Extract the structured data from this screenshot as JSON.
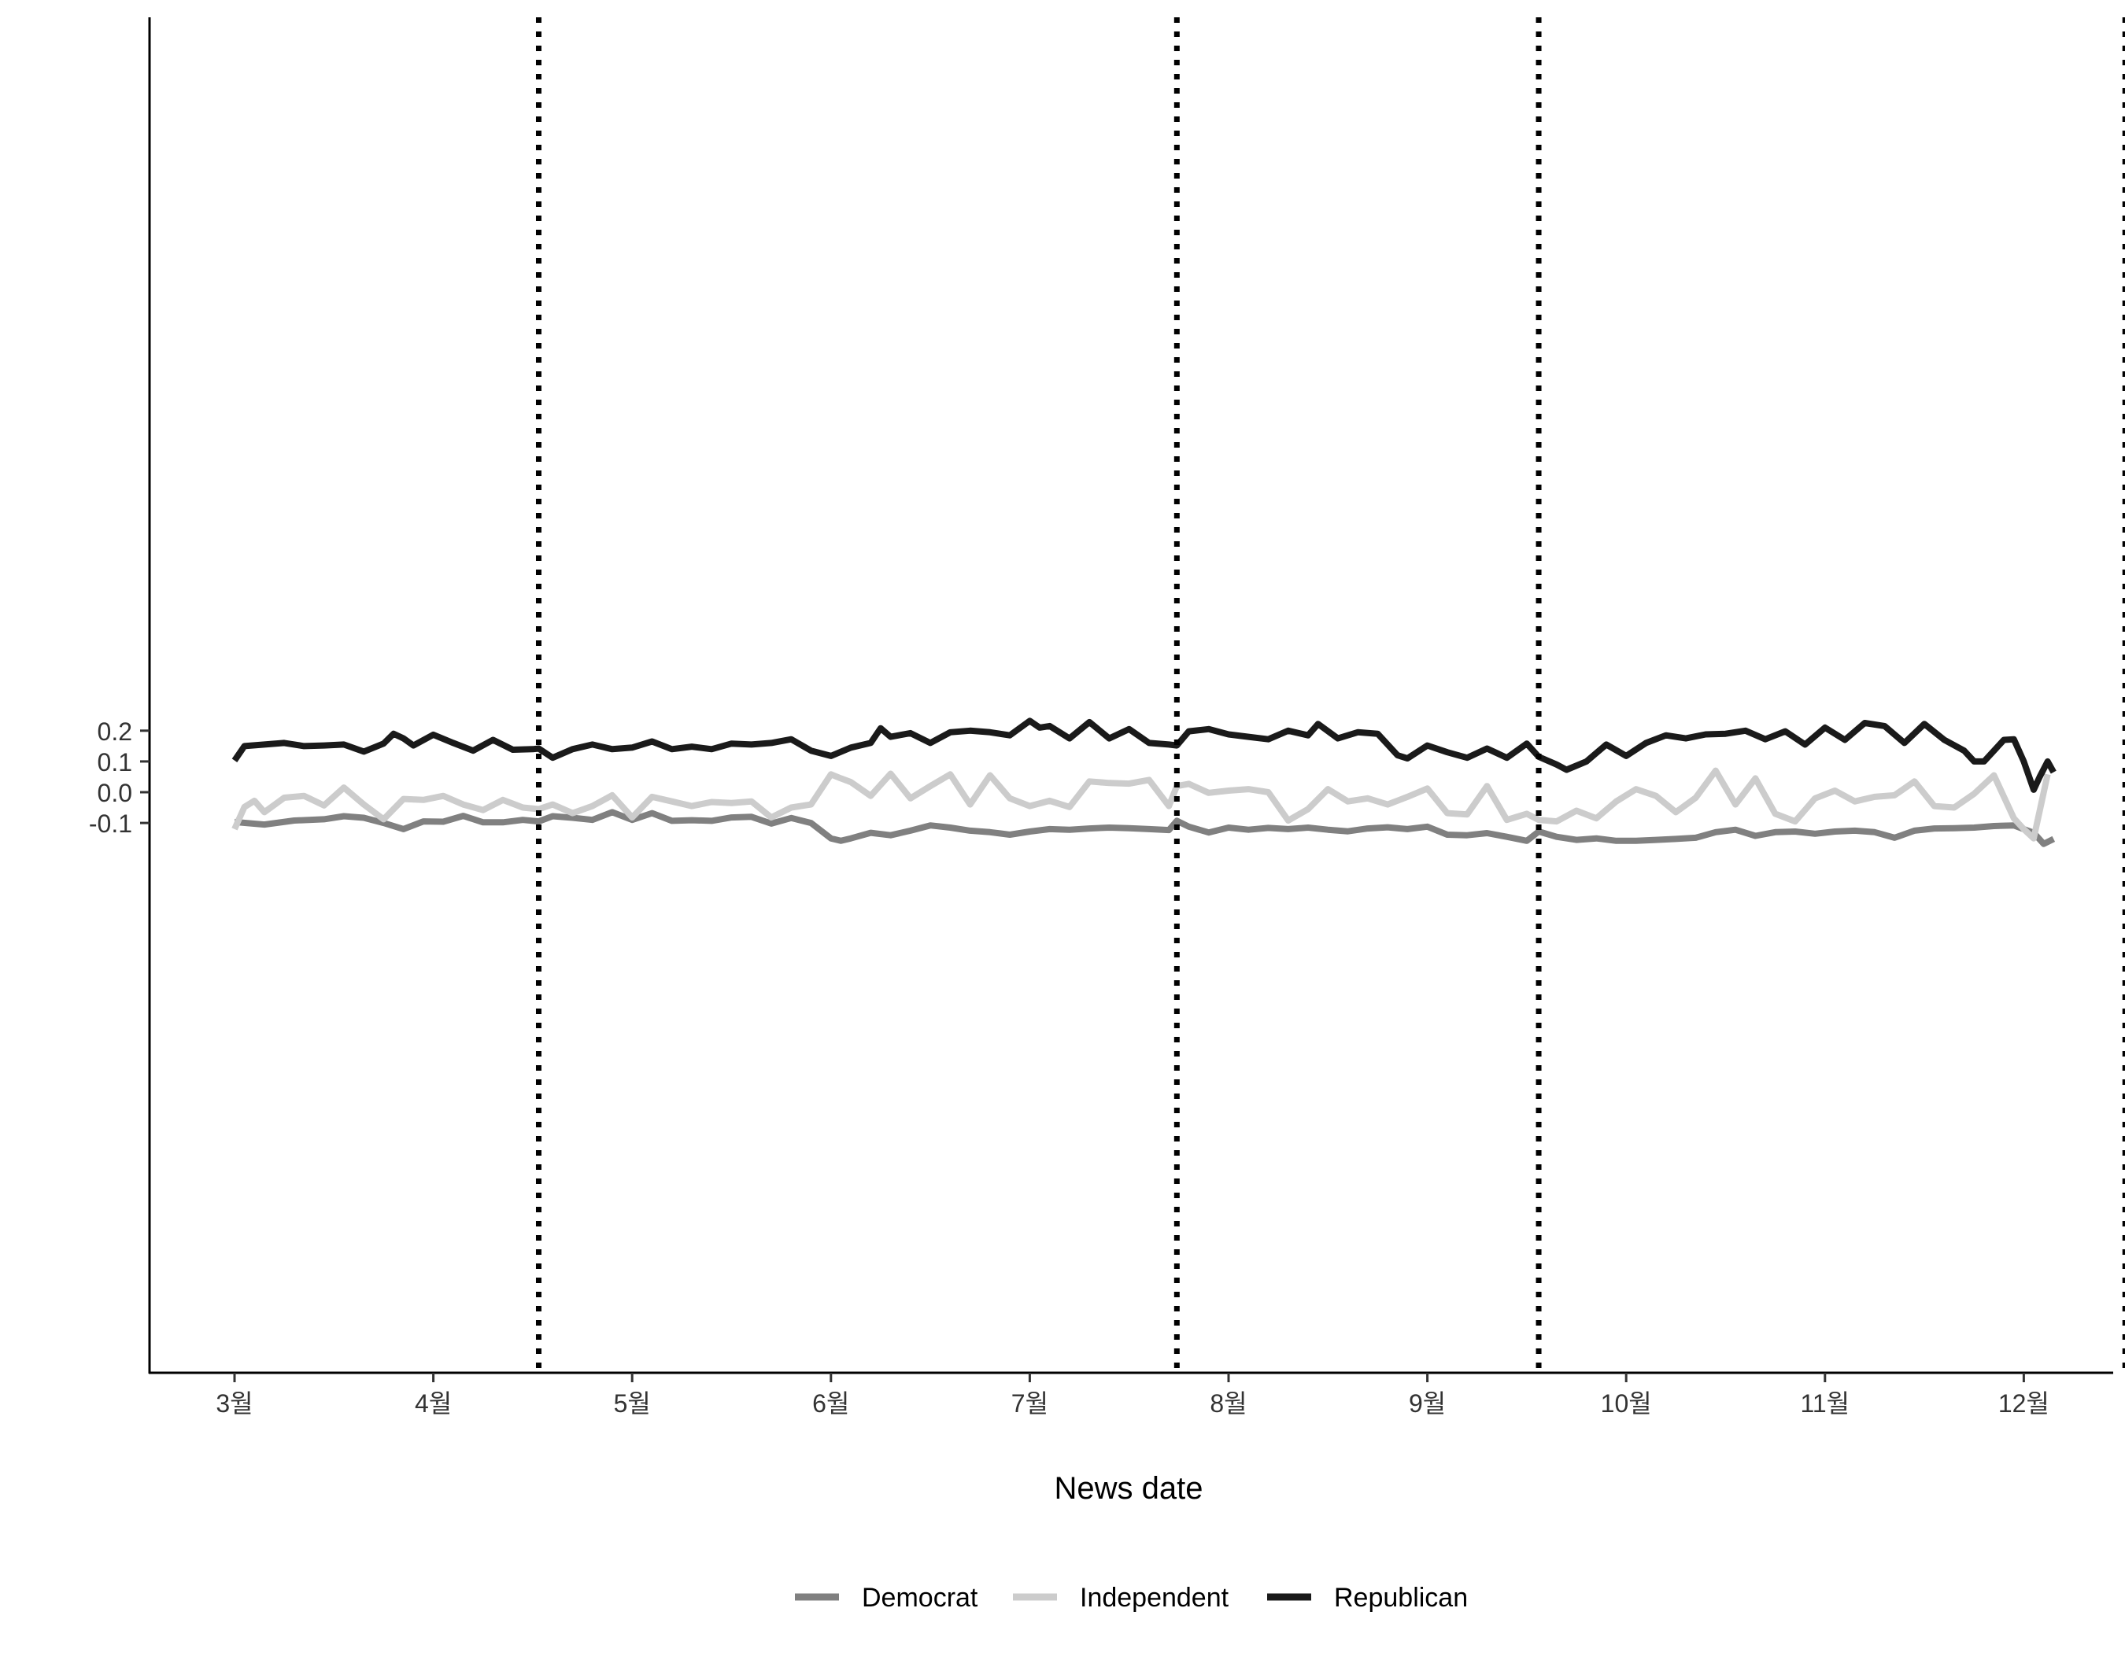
{
  "chart_data": {
    "type": "line",
    "title": "",
    "xlabel": "News date",
    "ylabel": "",
    "ylim": [
      -0.19,
      0.252
    ],
    "y_ticks": [
      {
        "value": -0.1,
        "label": "-0.1"
      },
      {
        "value": 0.0,
        "label": "0.0"
      },
      {
        "value": 0.1,
        "label": "0.1"
      },
      {
        "value": 0.2,
        "label": "0.2"
      }
    ],
    "x_ticks": [
      "3월",
      "4월",
      "5월",
      "6월",
      "7월",
      "8월",
      "9월",
      "10월",
      "11월",
      "12월"
    ],
    "vlines_month_position": [
      4.53,
      7.74,
      9.56,
      12.51
    ],
    "vline_style": "dotted",
    "grid": false,
    "legend_position": "bottom",
    "series": [
      {
        "name": "Democrat",
        "color": "#808080",
        "points": [
          [
            3.0,
            -0.097
          ],
          [
            3.15,
            -0.105
          ],
          [
            3.3,
            -0.092
          ],
          [
            3.45,
            -0.088
          ],
          [
            3.55,
            -0.078
          ],
          [
            3.65,
            -0.083
          ],
          [
            3.75,
            -0.1
          ],
          [
            3.85,
            -0.12
          ],
          [
            3.95,
            -0.095
          ],
          [
            4.05,
            -0.096
          ],
          [
            4.15,
            -0.077
          ],
          [
            4.25,
            -0.098
          ],
          [
            4.35,
            -0.098
          ],
          [
            4.45,
            -0.09
          ],
          [
            4.53,
            -0.095
          ],
          [
            4.6,
            -0.078
          ],
          [
            4.7,
            -0.083
          ],
          [
            4.8,
            -0.09
          ],
          [
            4.9,
            -0.065
          ],
          [
            5.0,
            -0.09
          ],
          [
            5.1,
            -0.068
          ],
          [
            5.2,
            -0.093
          ],
          [
            5.3,
            -0.091
          ],
          [
            5.4,
            -0.093
          ],
          [
            5.5,
            -0.082
          ],
          [
            5.6,
            -0.08
          ],
          [
            5.7,
            -0.102
          ],
          [
            5.8,
            -0.084
          ],
          [
            5.9,
            -0.1
          ],
          [
            6.0,
            -0.15
          ],
          [
            6.05,
            -0.158
          ],
          [
            6.1,
            -0.15
          ],
          [
            6.2,
            -0.132
          ],
          [
            6.3,
            -0.14
          ],
          [
            6.4,
            -0.125
          ],
          [
            6.5,
            -0.108
          ],
          [
            6.6,
            -0.115
          ],
          [
            6.7,
            -0.125
          ],
          [
            6.8,
            -0.13
          ],
          [
            6.9,
            -0.138
          ],
          [
            7.0,
            -0.128
          ],
          [
            7.1,
            -0.12
          ],
          [
            7.2,
            -0.122
          ],
          [
            7.3,
            -0.118
          ],
          [
            7.4,
            -0.115
          ],
          [
            7.5,
            -0.117
          ],
          [
            7.6,
            -0.12
          ],
          [
            7.7,
            -0.123
          ],
          [
            7.74,
            -0.093
          ],
          [
            7.8,
            -0.112
          ],
          [
            7.9,
            -0.131
          ],
          [
            8.0,
            -0.115
          ],
          [
            8.1,
            -0.122
          ],
          [
            8.2,
            -0.116
          ],
          [
            8.3,
            -0.12
          ],
          [
            8.4,
            -0.115
          ],
          [
            8.5,
            -0.122
          ],
          [
            8.6,
            -0.127
          ],
          [
            8.7,
            -0.118
          ],
          [
            8.8,
            -0.114
          ],
          [
            8.9,
            -0.12
          ],
          [
            9.0,
            -0.112
          ],
          [
            9.1,
            -0.138
          ],
          [
            9.2,
            -0.14
          ],
          [
            9.3,
            -0.133
          ],
          [
            9.4,
            -0.145
          ],
          [
            9.5,
            -0.158
          ],
          [
            9.56,
            -0.128
          ],
          [
            9.65,
            -0.145
          ],
          [
            9.75,
            -0.155
          ],
          [
            9.85,
            -0.15
          ],
          [
            9.95,
            -0.158
          ],
          [
            10.05,
            -0.158
          ],
          [
            10.15,
            -0.155
          ],
          [
            10.25,
            -0.152
          ],
          [
            10.35,
            -0.148
          ],
          [
            10.45,
            -0.13
          ],
          [
            10.55,
            -0.122
          ],
          [
            10.65,
            -0.142
          ],
          [
            10.75,
            -0.13
          ],
          [
            10.85,
            -0.128
          ],
          [
            10.95,
            -0.135
          ],
          [
            11.05,
            -0.128
          ],
          [
            11.15,
            -0.125
          ],
          [
            11.25,
            -0.13
          ],
          [
            11.35,
            -0.148
          ],
          [
            11.45,
            -0.125
          ],
          [
            11.55,
            -0.118
          ],
          [
            11.65,
            -0.117
          ],
          [
            11.75,
            -0.115
          ],
          [
            11.85,
            -0.11
          ],
          [
            11.95,
            -0.108
          ],
          [
            12.05,
            -0.132
          ],
          [
            12.1,
            -0.168
          ],
          [
            12.15,
            -0.152
          ]
        ]
      },
      {
        "name": "Independent",
        "color": "#cccccc",
        "points": [
          [
            3.0,
            -0.12
          ],
          [
            3.05,
            -0.048
          ],
          [
            3.1,
            -0.028
          ],
          [
            3.15,
            -0.065
          ],
          [
            3.25,
            -0.018
          ],
          [
            3.35,
            -0.012
          ],
          [
            3.45,
            -0.043
          ],
          [
            3.55,
            0.015
          ],
          [
            3.65,
            -0.04
          ],
          [
            3.75,
            -0.088
          ],
          [
            3.85,
            -0.022
          ],
          [
            3.95,
            -0.025
          ],
          [
            4.05,
            -0.012
          ],
          [
            4.15,
            -0.04
          ],
          [
            4.25,
            -0.058
          ],
          [
            4.35,
            -0.025
          ],
          [
            4.45,
            -0.05
          ],
          [
            4.53,
            -0.055
          ],
          [
            4.6,
            -0.04
          ],
          [
            4.7,
            -0.068
          ],
          [
            4.8,
            -0.045
          ],
          [
            4.9,
            -0.01
          ],
          [
            5.0,
            -0.082
          ],
          [
            5.1,
            -0.015
          ],
          [
            5.2,
            -0.03
          ],
          [
            5.3,
            -0.045
          ],
          [
            5.4,
            -0.032
          ],
          [
            5.5,
            -0.035
          ],
          [
            5.6,
            -0.03
          ],
          [
            5.7,
            -0.082
          ],
          [
            5.8,
            -0.05
          ],
          [
            5.9,
            -0.04
          ],
          [
            6.0,
            0.058
          ],
          [
            6.05,
            0.045
          ],
          [
            6.1,
            0.033
          ],
          [
            6.2,
            -0.012
          ],
          [
            6.3,
            0.06
          ],
          [
            6.4,
            -0.02
          ],
          [
            6.5,
            0.02
          ],
          [
            6.6,
            0.058
          ],
          [
            6.7,
            -0.04
          ],
          [
            6.8,
            0.055
          ],
          [
            6.9,
            -0.02
          ],
          [
            7.0,
            -0.045
          ],
          [
            7.1,
            -0.028
          ],
          [
            7.2,
            -0.048
          ],
          [
            7.3,
            0.035
          ],
          [
            7.4,
            0.03
          ],
          [
            7.5,
            0.028
          ],
          [
            7.6,
            0.04
          ],
          [
            7.7,
            -0.045
          ],
          [
            7.74,
            0.02
          ],
          [
            7.8,
            0.027
          ],
          [
            7.9,
            -0.002
          ],
          [
            8.0,
            0.005
          ],
          [
            8.1,
            0.01
          ],
          [
            8.2,
            0.0
          ],
          [
            8.3,
            -0.092
          ],
          [
            8.4,
            -0.055
          ],
          [
            8.5,
            0.01
          ],
          [
            8.6,
            -0.03
          ],
          [
            8.7,
            -0.02
          ],
          [
            8.8,
            -0.04
          ],
          [
            8.9,
            -0.015
          ],
          [
            9.0,
            0.012
          ],
          [
            9.1,
            -0.068
          ],
          [
            9.2,
            -0.072
          ],
          [
            9.3,
            0.02
          ],
          [
            9.4,
            -0.09
          ],
          [
            9.5,
            -0.07
          ],
          [
            9.56,
            -0.09
          ],
          [
            9.65,
            -0.095
          ],
          [
            9.75,
            -0.06
          ],
          [
            9.85,
            -0.085
          ],
          [
            9.95,
            -0.03
          ],
          [
            10.05,
            0.01
          ],
          [
            10.15,
            -0.012
          ],
          [
            10.25,
            -0.065
          ],
          [
            10.35,
            -0.018
          ],
          [
            10.45,
            0.07
          ],
          [
            10.55,
            -0.04
          ],
          [
            10.65,
            0.045
          ],
          [
            10.75,
            -0.07
          ],
          [
            10.85,
            -0.095
          ],
          [
            10.95,
            -0.02
          ],
          [
            11.05,
            0.005
          ],
          [
            11.15,
            -0.03
          ],
          [
            11.25,
            -0.015
          ],
          [
            11.35,
            -0.01
          ],
          [
            11.45,
            0.035
          ],
          [
            11.55,
            -0.045
          ],
          [
            11.65,
            -0.05
          ],
          [
            11.75,
            -0.005
          ],
          [
            11.85,
            0.055
          ],
          [
            11.95,
            -0.085
          ],
          [
            12.0,
            -0.12
          ],
          [
            12.05,
            -0.15
          ],
          [
            12.12,
            0.058
          ]
        ]
      },
      {
        "name": "Republican",
        "color": "#1a1a1a",
        "points": [
          [
            3.0,
            0.103
          ],
          [
            3.05,
            0.15
          ],
          [
            3.15,
            0.155
          ],
          [
            3.25,
            0.16
          ],
          [
            3.35,
            0.15
          ],
          [
            3.45,
            0.152
          ],
          [
            3.55,
            0.155
          ],
          [
            3.65,
            0.132
          ],
          [
            3.75,
            0.158
          ],
          [
            3.8,
            0.19
          ],
          [
            3.85,
            0.175
          ],
          [
            3.9,
            0.152
          ],
          [
            4.0,
            0.187
          ],
          [
            4.1,
            0.16
          ],
          [
            4.2,
            0.135
          ],
          [
            4.3,
            0.17
          ],
          [
            4.4,
            0.138
          ],
          [
            4.5,
            0.14
          ],
          [
            4.53,
            0.142
          ],
          [
            4.6,
            0.112
          ],
          [
            4.7,
            0.14
          ],
          [
            4.8,
            0.155
          ],
          [
            4.9,
            0.14
          ],
          [
            5.0,
            0.145
          ],
          [
            5.1,
            0.165
          ],
          [
            5.2,
            0.14
          ],
          [
            5.3,
            0.148
          ],
          [
            5.4,
            0.14
          ],
          [
            5.5,
            0.158
          ],
          [
            5.6,
            0.155
          ],
          [
            5.7,
            0.16
          ],
          [
            5.8,
            0.172
          ],
          [
            5.9,
            0.135
          ],
          [
            6.0,
            0.118
          ],
          [
            6.1,
            0.145
          ],
          [
            6.2,
            0.16
          ],
          [
            6.25,
            0.208
          ],
          [
            6.3,
            0.18
          ],
          [
            6.4,
            0.192
          ],
          [
            6.5,
            0.16
          ],
          [
            6.6,
            0.195
          ],
          [
            6.7,
            0.2
          ],
          [
            6.8,
            0.195
          ],
          [
            6.9,
            0.185
          ],
          [
            7.0,
            0.232
          ],
          [
            7.05,
            0.21
          ],
          [
            7.1,
            0.215
          ],
          [
            7.2,
            0.175
          ],
          [
            7.3,
            0.228
          ],
          [
            7.4,
            0.175
          ],
          [
            7.5,
            0.205
          ],
          [
            7.6,
            0.16
          ],
          [
            7.7,
            0.155
          ],
          [
            7.74,
            0.152
          ],
          [
            7.8,
            0.198
          ],
          [
            7.9,
            0.205
          ],
          [
            8.0,
            0.188
          ],
          [
            8.1,
            0.18
          ],
          [
            8.2,
            0.172
          ],
          [
            8.3,
            0.2
          ],
          [
            8.4,
            0.185
          ],
          [
            8.45,
            0.222
          ],
          [
            8.55,
            0.175
          ],
          [
            8.65,
            0.195
          ],
          [
            8.75,
            0.19
          ],
          [
            8.85,
            0.12
          ],
          [
            8.9,
            0.11
          ],
          [
            9.0,
            0.152
          ],
          [
            9.1,
            0.13
          ],
          [
            9.2,
            0.112
          ],
          [
            9.3,
            0.142
          ],
          [
            9.4,
            0.112
          ],
          [
            9.5,
            0.158
          ],
          [
            9.56,
            0.115
          ],
          [
            9.65,
            0.09
          ],
          [
            9.7,
            0.073
          ],
          [
            9.8,
            0.1
          ],
          [
            9.9,
            0.155
          ],
          [
            10.0,
            0.118
          ],
          [
            10.1,
            0.16
          ],
          [
            10.2,
            0.185
          ],
          [
            10.3,
            0.175
          ],
          [
            10.4,
            0.188
          ],
          [
            10.5,
            0.19
          ],
          [
            10.6,
            0.2
          ],
          [
            10.7,
            0.172
          ],
          [
            10.8,
            0.198
          ],
          [
            10.9,
            0.155
          ],
          [
            11.0,
            0.21
          ],
          [
            11.1,
            0.17
          ],
          [
            11.2,
            0.225
          ],
          [
            11.3,
            0.215
          ],
          [
            11.4,
            0.16
          ],
          [
            11.5,
            0.222
          ],
          [
            11.6,
            0.17
          ],
          [
            11.7,
            0.135
          ],
          [
            11.75,
            0.1
          ],
          [
            11.8,
            0.1
          ],
          [
            11.9,
            0.17
          ],
          [
            11.95,
            0.172
          ],
          [
            12.0,
            0.1
          ],
          [
            12.05,
            0.008
          ],
          [
            12.08,
            0.05
          ],
          [
            12.12,
            0.1
          ],
          [
            12.15,
            0.065
          ]
        ]
      }
    ]
  }
}
